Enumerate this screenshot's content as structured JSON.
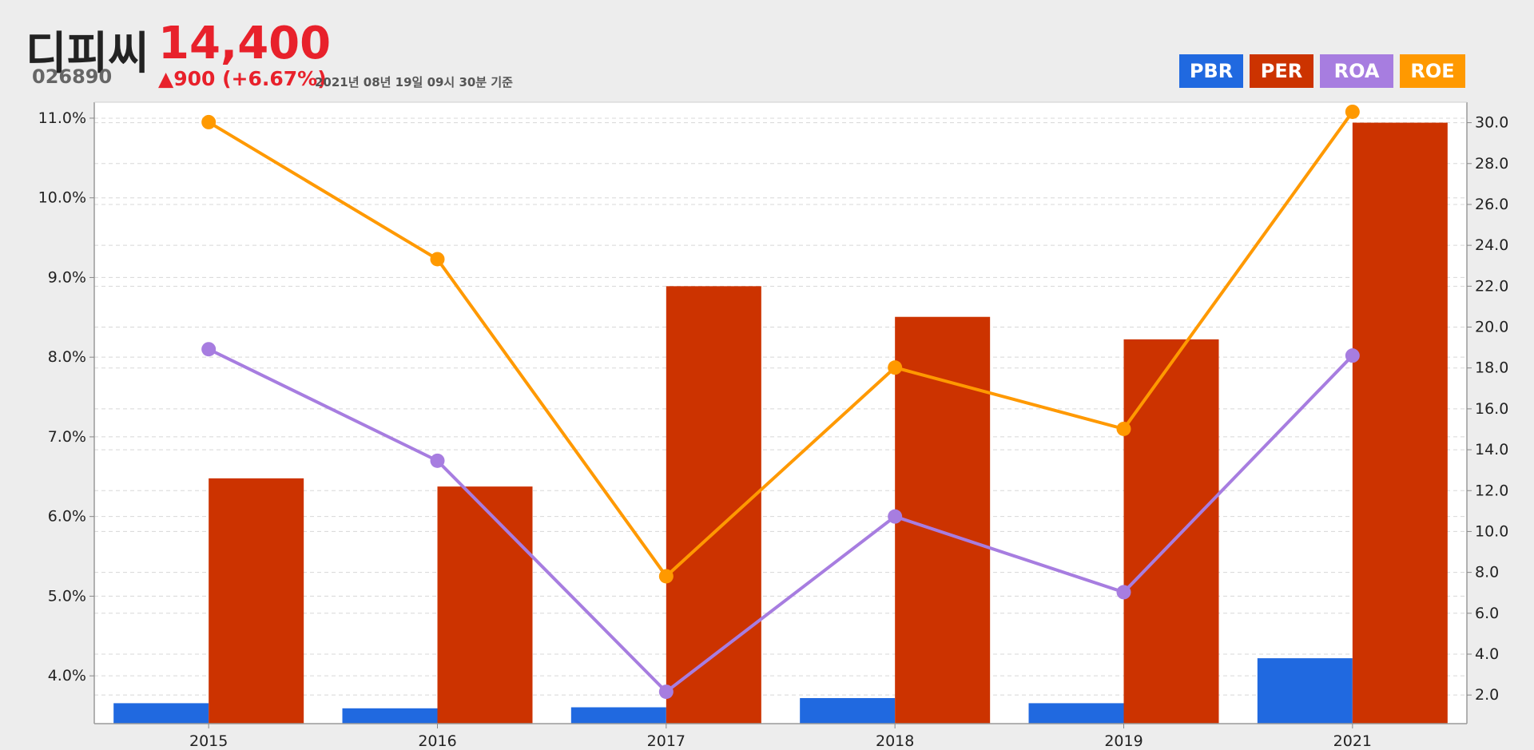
{
  "header": {
    "name": "디피씨",
    "price": "14,400",
    "code": "026890",
    "change": "▲900 (+6.67%)",
    "timestamp": "2021년 08년 19일 09시 30분 기준"
  },
  "legend": [
    {
      "label": "PBR",
      "color": "#2069e0"
    },
    {
      "label": "PER",
      "color": "#cc3300"
    },
    {
      "label": "ROA",
      "color": "#a77de0"
    },
    {
      "label": "ROE",
      "color": "#ff9900"
    }
  ],
  "chart_data": {
    "type": "bar",
    "categories": [
      "2015",
      "2016",
      "2017",
      "2018",
      "2019",
      "2021"
    ],
    "left_axis": {
      "ylim": [
        3.4,
        11.2
      ],
      "ticks": [
        4.0,
        5.0,
        6.0,
        7.0,
        8.0,
        9.0,
        10.0,
        11.0
      ],
      "tick_labels": [
        "4.0%",
        "5.0%",
        "6.0%",
        "7.0%",
        "8.0%",
        "9.0%",
        "10.0%",
        "11.0%"
      ]
    },
    "right_axis": {
      "ylim": [
        0.6,
        31.0
      ],
      "ticks": [
        2.0,
        4.0,
        6.0,
        8.0,
        10.0,
        12.0,
        14.0,
        16.0,
        18.0,
        20.0,
        22.0,
        24.0,
        26.0,
        28.0,
        30.0
      ],
      "tick_labels": [
        "2.0",
        "4.0",
        "6.0",
        "8.0",
        "10.0",
        "12.0",
        "14.0",
        "16.0",
        "18.0",
        "20.0",
        "22.0",
        "24.0",
        "26.0",
        "28.0",
        "30.0"
      ]
    },
    "series": [
      {
        "name": "PBR",
        "kind": "bar",
        "axis": "right",
        "color": "#2069e0",
        "values": [
          1.6,
          1.35,
          1.4,
          1.85,
          1.6,
          3.8
        ]
      },
      {
        "name": "PER",
        "kind": "bar",
        "axis": "right",
        "color": "#cc3300",
        "values": [
          12.6,
          12.2,
          22.0,
          20.5,
          19.4,
          30.0
        ]
      },
      {
        "name": "ROA",
        "kind": "line",
        "axis": "left",
        "color": "#a77de0",
        "values": [
          8.1,
          6.7,
          3.8,
          6.0,
          5.05,
          8.02
        ]
      },
      {
        "name": "ROE",
        "kind": "line",
        "axis": "left",
        "color": "#ff9900",
        "values": [
          10.95,
          9.23,
          5.25,
          7.87,
          7.1,
          11.08
        ]
      }
    ],
    "grid": true
  }
}
